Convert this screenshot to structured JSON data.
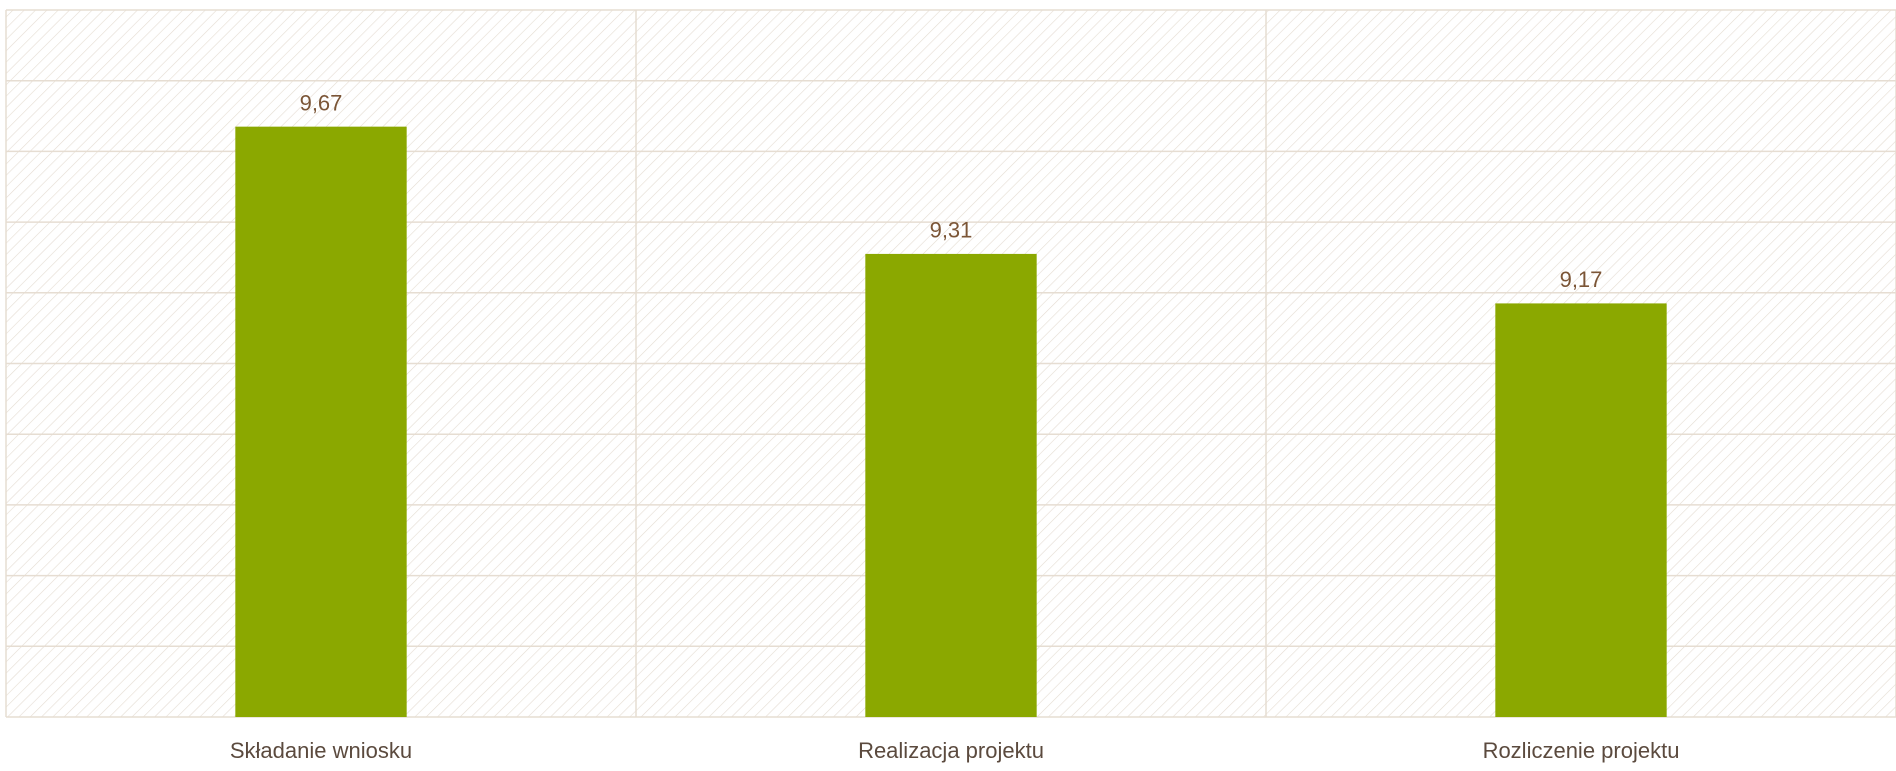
{
  "chart_data": {
    "type": "bar",
    "categories": [
      "Składanie wniosku",
      "Realizacja projektu",
      "Rozliczenie projektu"
    ],
    "values": [
      9.67,
      9.31,
      9.17
    ],
    "value_labels": [
      "9,67",
      "9,31",
      "9,17"
    ],
    "color": "#8ba800",
    "ylim": [
      8,
      10
    ],
    "yticks": [
      8,
      8.2,
      8.4,
      8.6,
      8.8,
      9,
      9.2,
      9.4,
      9.6,
      9.8,
      10
    ],
    "grid": true
  }
}
